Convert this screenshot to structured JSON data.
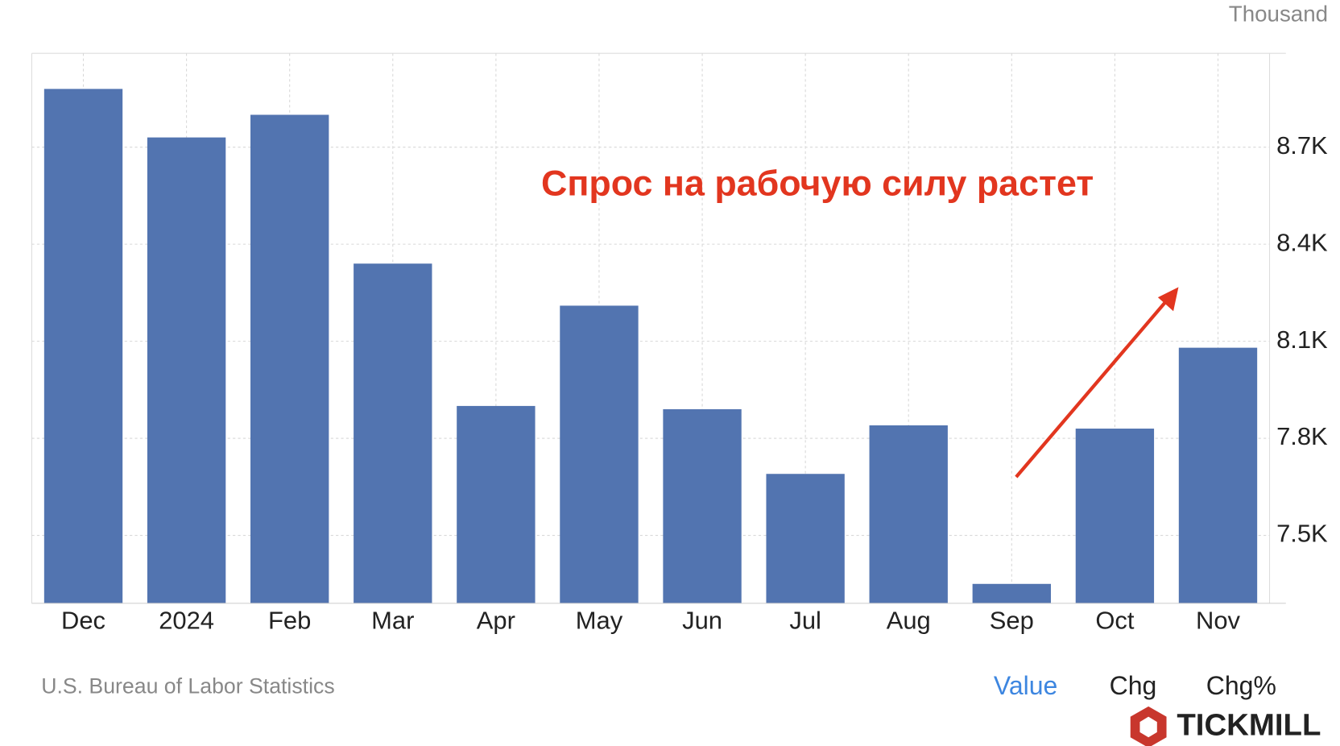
{
  "chart_data": {
    "type": "bar",
    "unit_label": "Thousand",
    "annotation": "Спрос на рабочую силу растет",
    "source": "U.S. Bureau of Labor Statistics",
    "tabs": [
      "Value",
      "Chg",
      "Chg%"
    ],
    "brand": "TICKMILL",
    "categories": [
      "Dec",
      "2024",
      "Feb",
      "Mar",
      "Apr",
      "May",
      "Jun",
      "Jul",
      "Aug",
      "Sep",
      "Oct",
      "Nov"
    ],
    "values": [
      8880,
      8730,
      8800,
      8340,
      7900,
      8210,
      7890,
      7690,
      7840,
      7350,
      7830,
      8080
    ],
    "color": "#5274b0",
    "ylim": [
      7290,
      8990
    ],
    "yticks": [
      {
        "value": 7500,
        "label": "7.5K"
      },
      {
        "value": 7800,
        "label": "7.8K"
      },
      {
        "value": 8100,
        "label": "8.1K"
      },
      {
        "value": 8400,
        "label": "8.4K"
      },
      {
        "value": 8700,
        "label": "8.7K"
      }
    ],
    "grid": true
  }
}
